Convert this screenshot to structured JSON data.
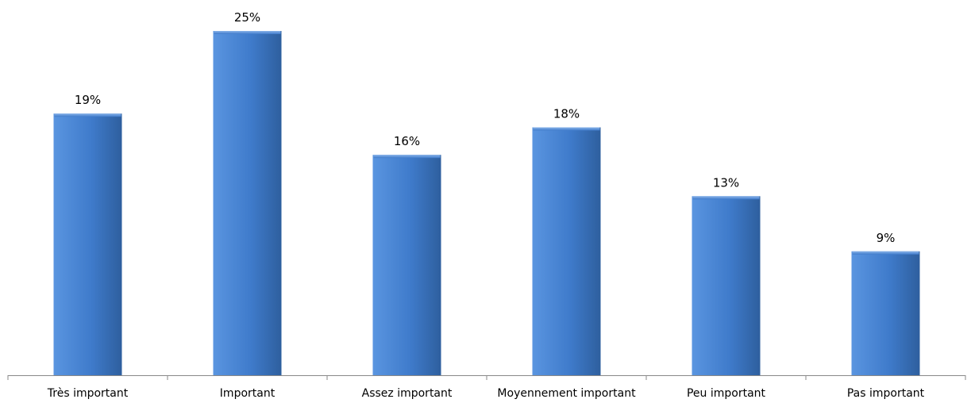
{
  "chart_data": {
    "type": "bar",
    "categories": [
      "Très important",
      "Important",
      "Assez important",
      "Moyennement important",
      "Peu important",
      "Pas important"
    ],
    "values": [
      19,
      25,
      16,
      18,
      13,
      9
    ],
    "value_labels": [
      "19%",
      "25%",
      "16%",
      "18%",
      "13%",
      "9%"
    ],
    "unit": "%",
    "title": "",
    "xlabel": "",
    "ylabel": "",
    "ylim": [
      0,
      25
    ],
    "grid": false,
    "legend": "none",
    "colors": {
      "bar_light": "#5a95e0",
      "bar_main": "#3f7bcb",
      "bar_dark": "#2e5f9e",
      "bar_top": "#8ab4ea",
      "axis": "#888888"
    }
  }
}
